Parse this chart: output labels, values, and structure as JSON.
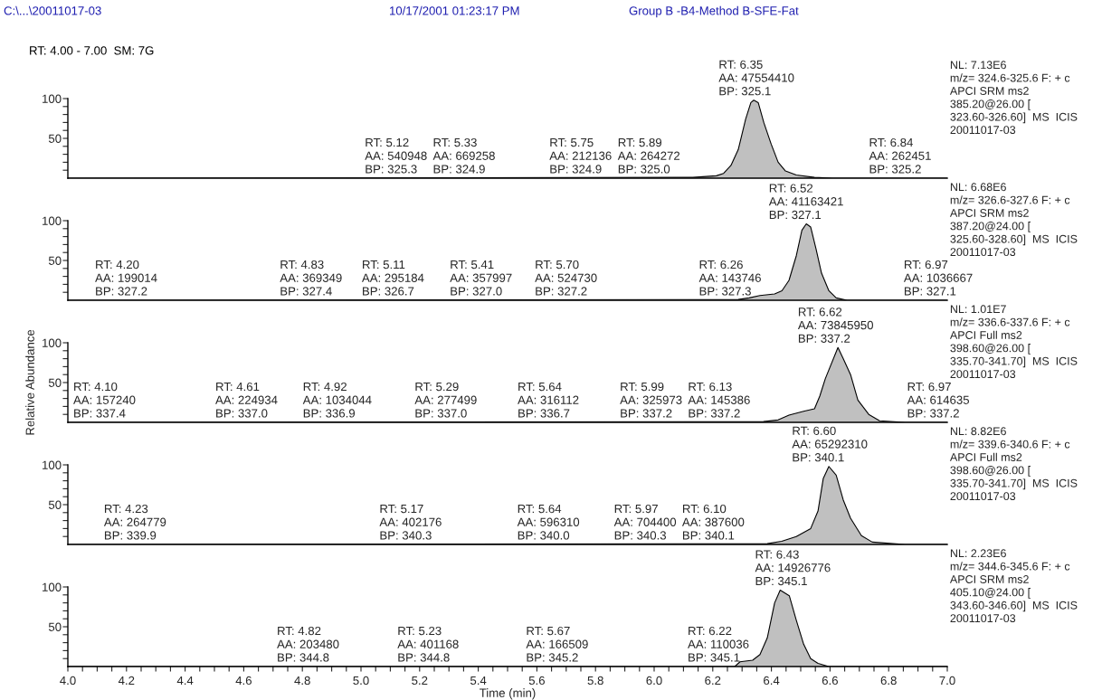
{
  "chart_data": [
    {
      "type": "area",
      "xlim": [
        4.0,
        7.0
      ],
      "ylim": [
        0,
        100
      ],
      "yticks": [
        {
          "value": 10,
          "label": null
        },
        {
          "value": 20,
          "label": null
        },
        {
          "value": 30,
          "label": null
        },
        {
          "value": 40,
          "label": null
        },
        50,
        {
          "value": 60,
          "label": null
        },
        {
          "value": 70,
          "label": null
        },
        {
          "value": 80,
          "label": null
        },
        {
          "value": 90,
          "label": null
        },
        100
      ],
      "tick_labels": "y",
      "series": [
        {
          "color": "#c0c0c0",
          "x": [
            4.0,
            6.132,
            6.212,
            6.237,
            6.262,
            6.287,
            6.312,
            6.33,
            6.34,
            6.355,
            6.374,
            6.399,
            6.423,
            6.448,
            6.485,
            6.547,
            6.609,
            7.0
          ],
          "values": [
            0,
            1,
            3,
            6,
            16,
            36,
            74,
            95,
            98,
            95,
            70,
            43,
            20,
            9,
            4,
            1,
            0,
            0
          ]
        }
      ],
      "annotations": [
        "C:\\...\\20011017-03",
        "10/17/2001 01:23:17 PM",
        "Group B -B4-Method B-SFE-Fat",
        "RT: 4.00 - 7.00  SM: 7G",
        {
          "text": "RT: 5.12\nAA: 540948\nBP: 325.3",
          "x": 5.12,
          "y": 0
        },
        {
          "text": "RT: 5.33\nAA: 669258\nBP: 324.9",
          "x": 5.33,
          "y": 0
        },
        {
          "text": "RT: 5.75\nAA: 212136\nBP: 324.9",
          "x": 5.75,
          "y": 0
        },
        {
          "text": "RT: 5.89\nAA: 264272\nBP: 325.0",
          "x": 5.89,
          "y": 0
        },
        {
          "text": "RT: 6.35\nAA: 47554410\nBP: 325.1",
          "x": 6.35,
          "y": 98
        },
        {
          "text": "RT: 6.84\nAA: 262451\nBP: 325.2",
          "x": 6.84,
          "y": 0
        },
        "NL: 7.13E6\nm/z= 324.6-325.6 F: + c\nAPCI SRM ms2\n385.20@26.00 [\n323.60-326.60]  MS  ICIS\n20011017-03"
      ]
    },
    {
      "type": "area",
      "xlim": [
        4.0,
        7.0
      ],
      "ylim": [
        0,
        100
      ],
      "yticks": [
        {
          "value": 10,
          "label": null
        },
        {
          "value": 20,
          "label": null
        },
        {
          "value": 30,
          "label": null
        },
        {
          "value": 40,
          "label": null
        },
        50,
        {
          "value": 60,
          "label": null
        },
        {
          "value": 70,
          "label": null
        },
        {
          "value": 80,
          "label": null
        },
        {
          "value": 90,
          "label": null
        },
        100
      ],
      "tick_labels": "y",
      "series": [
        {
          "color": "#c0c0c0",
          "x": [
            4.0,
            6.287,
            6.324,
            6.361,
            6.411,
            6.436,
            6.46,
            6.485,
            6.504,
            6.519,
            6.534,
            6.552,
            6.571,
            6.596,
            6.621,
            6.658,
            7.0
          ],
          "values": [
            0,
            1,
            3,
            6,
            8,
            12,
            25,
            56,
            88,
            96,
            92,
            65,
            34,
            12,
            3,
            0,
            0
          ]
        }
      ],
      "annotations": [
        {
          "text": "RT: 4.20\nAA: 199014\nBP: 327.2",
          "x": 4.2,
          "y": 0
        },
        {
          "text": "RT: 4.83\nAA: 369349\nBP: 327.4",
          "x": 4.83,
          "y": 0
        },
        {
          "text": "RT: 5.11\nAA: 295184\nBP: 326.7",
          "x": 5.11,
          "y": 0
        },
        {
          "text": "RT: 5.41\nAA: 357997\nBP: 327.0",
          "x": 5.41,
          "y": 0
        },
        {
          "text": "RT: 5.70\nAA: 524730\nBP: 327.2",
          "x": 5.7,
          "y": 0
        },
        {
          "text": "RT: 6.26\nAA: 143746\nBP: 327.3",
          "x": 6.26,
          "y": 0
        },
        {
          "text": "RT: 6.52\nAA: 41163421\nBP: 327.1",
          "x": 6.52,
          "y": 96
        },
        {
          "text": "RT: 6.97\nAA: 1036667\nBP: 327.1",
          "x": 6.97,
          "y": 0
        },
        "NL: 6.68E6\nm/z= 326.6-327.6 F: + c\nAPCI SRM ms2\n387.20@24.00 [\n325.60-328.60]  MS  ICIS\n20011017-03"
      ]
    },
    {
      "type": "area",
      "xlim": [
        4.0,
        7.0
      ],
      "ylim": [
        0,
        100
      ],
      "yticks": [
        {
          "value": 10,
          "label": null
        },
        {
          "value": 20,
          "label": null
        },
        {
          "value": 30,
          "label": null
        },
        {
          "value": 40,
          "label": null
        },
        50,
        {
          "value": 60,
          "label": null
        },
        {
          "value": 70,
          "label": null
        },
        {
          "value": 80,
          "label": null
        },
        {
          "value": 90,
          "label": null
        },
        100
      ],
      "tick_labels": "y",
      "ylabel": "Relative Abundance",
      "series": [
        {
          "color": "#c0c0c0",
          "x": [
            4.0,
            6.373,
            6.423,
            6.46,
            6.51,
            6.547,
            6.565,
            6.584,
            6.627,
            6.645,
            6.67,
            6.695,
            6.732,
            6.769,
            6.856,
            7.0
          ],
          "values": [
            0,
            1,
            3,
            9,
            14,
            17,
            33,
            55,
            94,
            80,
            60,
            28,
            10,
            2,
            0,
            0
          ]
        }
      ],
      "annotations": [
        {
          "text": "RT: 4.10\nAA: 157240\nBP: 337.4",
          "x": 4.1,
          "y": 0
        },
        {
          "text": "RT: 4.61\nAA: 224934\nBP: 337.0",
          "x": 4.61,
          "y": 0
        },
        {
          "text": "RT: 4.92\nAA: 1034044\nBP: 336.9",
          "x": 4.92,
          "y": 0
        },
        {
          "text": "RT: 5.29\nAA: 277499\nBP: 337.0",
          "x": 5.29,
          "y": 0
        },
        {
          "text": "RT: 5.64\nAA: 316112\nBP: 336.7",
          "x": 5.64,
          "y": 0
        },
        {
          "text": "RT: 5.99\nAA: 325973\nBP: 337.2",
          "x": 5.99,
          "y": 0
        },
        {
          "text": "RT: 6.13\nAA: 145386\nBP: 337.2",
          "x": 6.13,
          "y": 0
        },
        {
          "text": "RT: 6.62\nAA: 73845950\nBP: 337.2",
          "x": 6.62,
          "y": 94
        },
        {
          "text": "RT: 6.97\nAA: 614635\nBP: 337.2",
          "x": 6.97,
          "y": 0
        },
        "NL: 1.01E7\nm/z= 336.6-337.6 F: + c\nAPCI Full ms2\n398.60@26.00 [\n335.70-341.70]  MS  ICIS\n20011017-03"
      ]
    },
    {
      "type": "area",
      "xlim": [
        4.0,
        7.0
      ],
      "ylim": [
        0,
        100
      ],
      "yticks": [
        {
          "value": 10,
          "label": null
        },
        {
          "value": 20,
          "label": null
        },
        {
          "value": 30,
          "label": null
        },
        {
          "value": 40,
          "label": null
        },
        50,
        {
          "value": 60,
          "label": null
        },
        {
          "value": 70,
          "label": null
        },
        {
          "value": 80,
          "label": null
        },
        {
          "value": 90,
          "label": null
        },
        100
      ],
      "tick_labels": "y",
      "series": [
        {
          "color": "#c0c0c0",
          "x": [
            4.0,
            6.386,
            6.435,
            6.485,
            6.534,
            6.559,
            6.577,
            6.596,
            6.621,
            6.645,
            6.67,
            6.707,
            6.744,
            6.856,
            7.0
          ],
          "values": [
            0,
            1,
            4,
            10,
            20,
            42,
            83,
            98,
            87,
            56,
            33,
            11,
            3,
            0,
            0
          ]
        }
      ],
      "annotations": [
        {
          "text": "RT: 4.23\nAA: 264779\nBP: 339.9",
          "x": 4.23,
          "y": 0
        },
        {
          "text": "RT: 5.17\nAA: 402176\nBP: 340.3",
          "x": 5.17,
          "y": 0
        },
        {
          "text": "RT: 5.64\nAA: 596310\nBP: 340.0",
          "x": 5.64,
          "y": 0
        },
        {
          "text": "RT: 5.97\nAA: 704400\nBP: 340.3",
          "x": 5.97,
          "y": 0
        },
        {
          "text": "RT: 6.10\nAA: 387600\nBP: 340.1",
          "x": 6.1,
          "y": 0
        },
        {
          "text": "RT: 6.60\nAA: 65292310\nBP: 340.1",
          "x": 6.6,
          "y": 98
        },
        "NL: 8.82E6\nm/z= 339.6-340.6 F: + c\nAPCI Full ms2\n398.60@26.00 [\n335.70-341.70]  MS  ICIS\n20011017-03"
      ]
    },
    {
      "type": "area",
      "xlim": [
        4.0,
        7.0
      ],
      "ylim": [
        0,
        100
      ],
      "yticks": [
        {
          "value": 10,
          "label": null
        },
        {
          "value": 20,
          "label": null
        },
        {
          "value": 30,
          "label": null
        },
        {
          "value": 40,
          "label": null
        },
        50,
        {
          "value": 60,
          "label": null
        },
        {
          "value": 70,
          "label": null
        },
        {
          "value": 80,
          "label": null
        },
        {
          "value": 90,
          "label": null
        },
        100
      ],
      "xlabel": "Time (min)",
      "xticks": [
        {
          "value": 4.0,
          "label": "4.0"
        },
        {
          "value": 4.05,
          "label": null
        },
        {
          "value": 4.1,
          "label": null
        },
        {
          "value": 4.15,
          "label": null
        },
        4.2,
        {
          "value": 4.25,
          "label": null
        },
        {
          "value": 4.3,
          "label": null
        },
        {
          "value": 4.35,
          "label": null
        },
        4.4,
        {
          "value": 4.45,
          "label": null
        },
        {
          "value": 4.5,
          "label": null
        },
        {
          "value": 4.55,
          "label": null
        },
        4.6,
        {
          "value": 4.65,
          "label": null
        },
        {
          "value": 4.7,
          "label": null
        },
        {
          "value": 4.75,
          "label": null
        },
        4.8,
        {
          "value": 4.85,
          "label": null
        },
        {
          "value": 4.9,
          "label": null
        },
        {
          "value": 4.95,
          "label": null
        },
        {
          "value": 5.0,
          "label": "5.0"
        },
        {
          "value": 5.05,
          "label": null
        },
        {
          "value": 5.1,
          "label": null
        },
        {
          "value": 5.15,
          "label": null
        },
        5.2,
        {
          "value": 5.25,
          "label": null
        },
        {
          "value": 5.3,
          "label": null
        },
        {
          "value": 5.35,
          "label": null
        },
        5.4,
        {
          "value": 5.45,
          "label": null
        },
        {
          "value": 5.5,
          "label": null
        },
        {
          "value": 5.55,
          "label": null
        },
        5.6,
        {
          "value": 5.65,
          "label": null
        },
        {
          "value": 5.7,
          "label": null
        },
        {
          "value": 5.75,
          "label": null
        },
        5.8,
        {
          "value": 5.85,
          "label": null
        },
        {
          "value": 5.9,
          "label": null
        },
        {
          "value": 5.95,
          "label": null
        },
        {
          "value": 6.0,
          "label": "6.0"
        },
        {
          "value": 6.05,
          "label": null
        },
        {
          "value": 6.1,
          "label": null
        },
        {
          "value": 6.15,
          "label": null
        },
        6.2,
        {
          "value": 6.25,
          "label": null
        },
        {
          "value": 6.3,
          "label": null
        },
        {
          "value": 6.35,
          "label": null
        },
        6.4,
        {
          "value": 6.45,
          "label": null
        },
        {
          "value": 6.5,
          "label": null
        },
        {
          "value": 6.55,
          "label": null
        },
        6.6,
        {
          "value": 6.65,
          "label": null
        },
        {
          "value": 6.7,
          "label": null
        },
        {
          "value": 6.75,
          "label": null
        },
        6.8,
        {
          "value": 6.85,
          "label": null
        },
        {
          "value": 6.9,
          "label": null
        },
        {
          "value": 6.95,
          "label": null
        },
        {
          "value": 7.0,
          "label": "7.0"
        }
      ],
      "series": [
        {
          "color": "#c0c0c0",
          "x": [
            4.0,
            6.275,
            6.293,
            6.336,
            6.361,
            6.386,
            6.411,
            6.43,
            6.461,
            6.485,
            6.51,
            6.534,
            6.559,
            6.596,
            7.0
          ],
          "values": [
            0,
            0,
            6,
            8,
            15,
            36,
            80,
            96,
            89,
            58,
            28,
            10,
            4,
            0,
            0
          ]
        }
      ],
      "annotations": [
        {
          "text": "RT: 4.82\nAA: 203480\nBP: 344.8",
          "x": 4.82,
          "y": 0
        },
        {
          "text": "RT: 5.23\nAA: 401168\nBP: 344.8",
          "x": 5.23,
          "y": 0
        },
        {
          "text": "RT: 5.67\nAA: 166509\nBP: 345.2",
          "x": 5.67,
          "y": 0
        },
        {
          "text": "RT: 6.22\nAA: 110036\nBP: 345.1",
          "x": 6.22,
          "y": 0
        },
        {
          "text": "RT: 6.43\nAA: 14926776\nBP: 345.1",
          "x": 6.43,
          "y": 96
        },
        "NL: 2.23E6\nm/z= 344.6-345.6 F: + c\nAPCI SRM ms2\n405.10@24.00 [\n343.60-346.60]  MS  ICIS\n20011017-03"
      ]
    }
  ]
}
